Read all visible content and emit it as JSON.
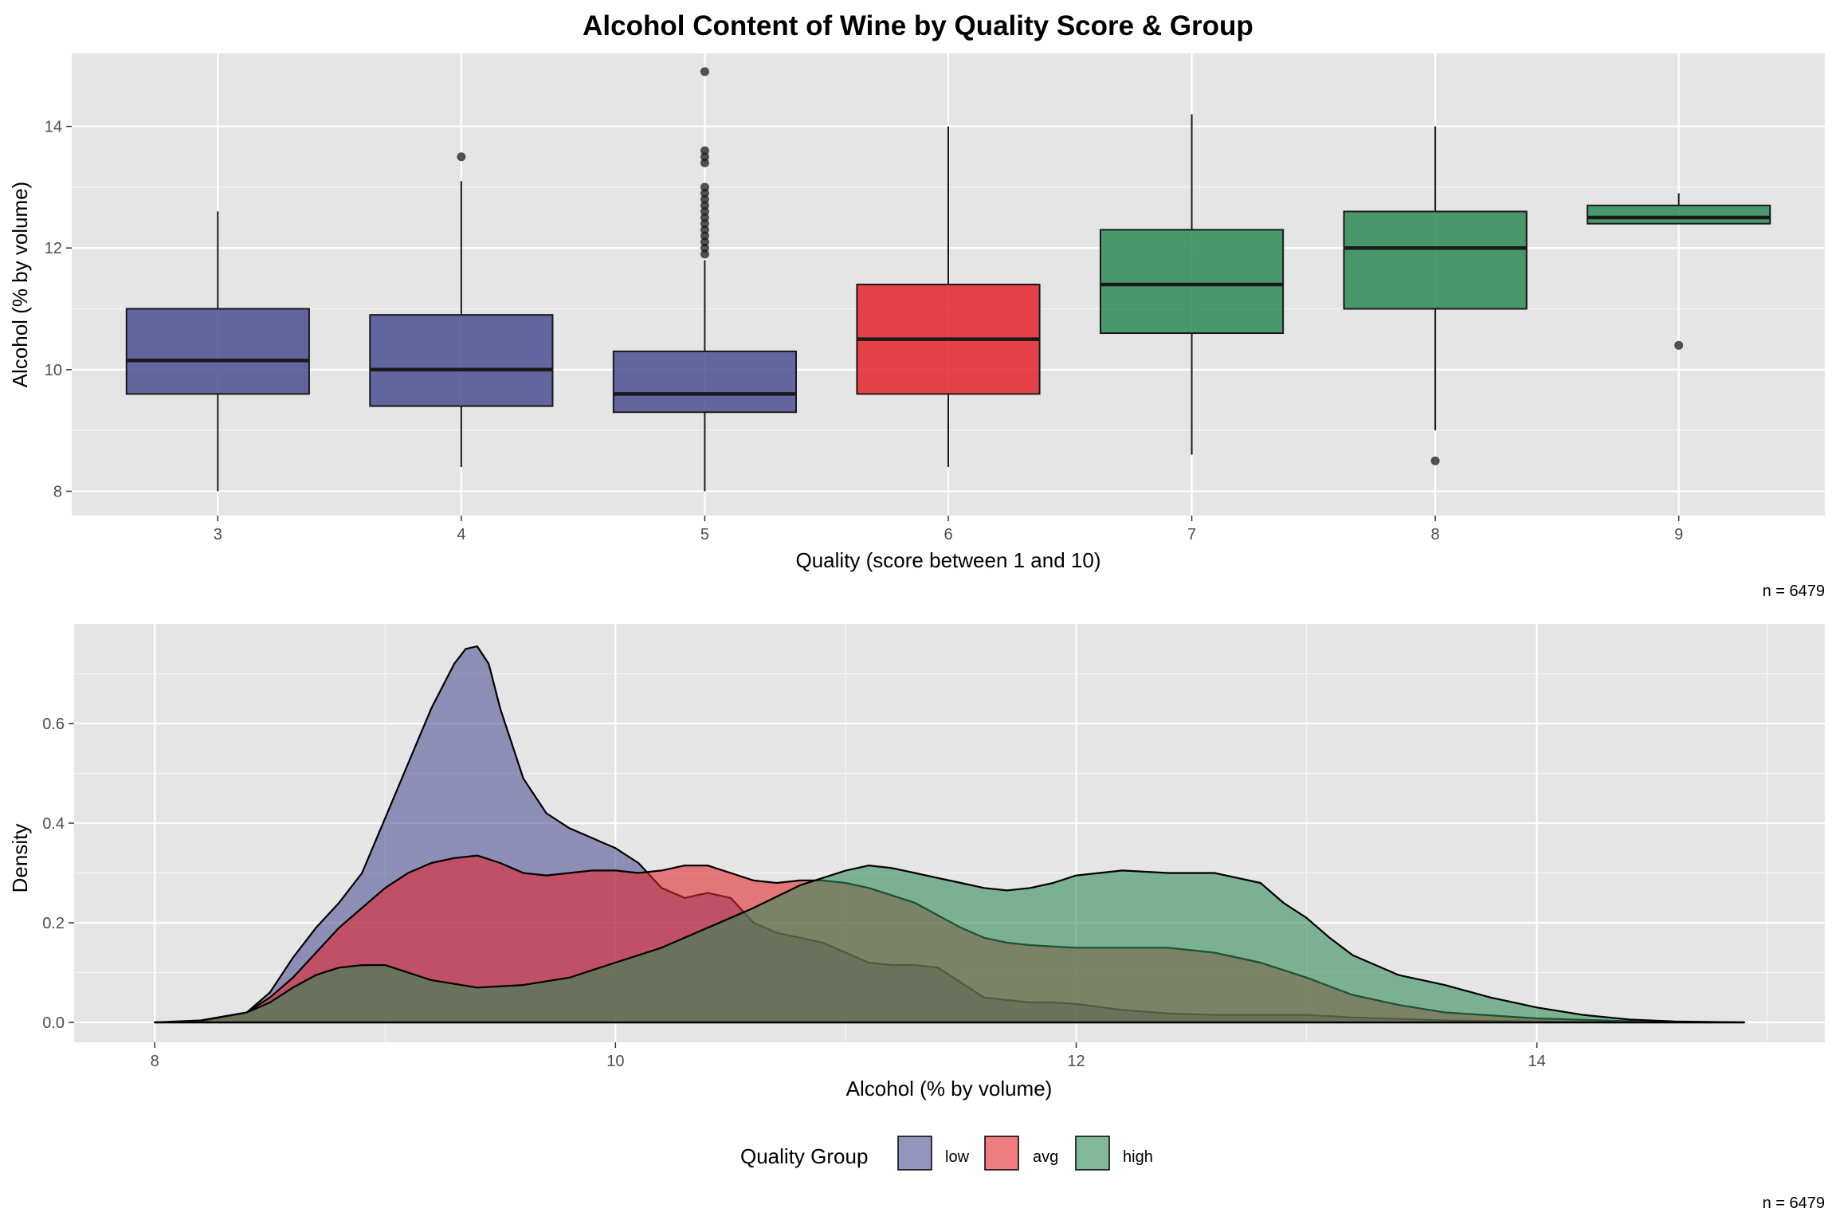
{
  "title": "Alcohol Content of Wine by Quality Score & Group",
  "colors": {
    "low": "#4b4f92",
    "avg": "#e3242b",
    "high": "#2e8b57",
    "panel": "#e5e5e5",
    "grid": "#ffffff"
  },
  "chart_data": [
    {
      "type": "boxplot",
      "xlabel": "Quality (score between 1 and 10)",
      "ylabel": "Alcohol (% by volume)",
      "caption": "n = 6479",
      "ylim": [
        7.6,
        15.2
      ],
      "yticks": [
        8,
        10,
        12,
        14
      ],
      "grid": true,
      "boxes": [
        {
          "quality": "3",
          "group": "low",
          "min": 8.0,
          "q1": 9.6,
          "median": 10.15,
          "q3": 11.0,
          "max": 12.6,
          "outliers": []
        },
        {
          "quality": "4",
          "group": "low",
          "min": 8.4,
          "q1": 9.4,
          "median": 10.0,
          "q3": 10.9,
          "max": 13.1,
          "outliers": [
            13.5
          ]
        },
        {
          "quality": "5",
          "group": "low",
          "min": 8.0,
          "q1": 9.3,
          "median": 9.6,
          "q3": 10.3,
          "max": 11.8,
          "outliers": [
            11.9,
            12.0,
            12.1,
            12.2,
            12.3,
            12.4,
            12.5,
            12.6,
            12.7,
            12.8,
            12.9,
            13.0,
            13.4,
            13.5,
            13.6,
            14.9
          ]
        },
        {
          "quality": "6",
          "group": "avg",
          "min": 8.4,
          "q1": 9.6,
          "median": 10.5,
          "q3": 11.4,
          "max": 14.0,
          "outliers": []
        },
        {
          "quality": "7",
          "group": "high",
          "min": 8.6,
          "q1": 10.6,
          "median": 11.4,
          "q3": 12.3,
          "max": 14.2,
          "outliers": []
        },
        {
          "quality": "8",
          "group": "high",
          "min": 9.0,
          "q1": 11.0,
          "median": 12.0,
          "q3": 12.6,
          "max": 14.0,
          "outliers": [
            8.5
          ]
        },
        {
          "quality": "9",
          "group": "high",
          "min": 12.4,
          "q1": 12.4,
          "median": 12.5,
          "q3": 12.7,
          "max": 12.9,
          "outliers": [
            10.4
          ]
        }
      ]
    },
    {
      "type": "area",
      "xlabel": "Alcohol (% by volume)",
      "ylabel": "Density",
      "caption": "n = 6479",
      "xlim": [
        7.65,
        15.25
      ],
      "ylim": [
        -0.04,
        0.8
      ],
      "xticks": [
        8,
        10,
        12,
        14
      ],
      "yticks": [
        0.0,
        0.2,
        0.4,
        0.6
      ],
      "grid": true,
      "legend": {
        "title": "Quality Group",
        "position": "bottom",
        "entries": [
          "low",
          "avg",
          "high"
        ]
      },
      "series": [
        {
          "name": "low",
          "x": [
            8.0,
            8.2,
            8.4,
            8.5,
            8.6,
            8.7,
            8.8,
            8.9,
            9.0,
            9.1,
            9.2,
            9.3,
            9.35,
            9.4,
            9.45,
            9.5,
            9.6,
            9.7,
            9.8,
            9.9,
            10.0,
            10.1,
            10.2,
            10.3,
            10.4,
            10.5,
            10.6,
            10.7,
            10.8,
            10.9,
            11.0,
            11.1,
            11.2,
            11.3,
            11.4,
            11.5,
            11.6,
            11.7,
            11.8,
            11.9,
            12.0,
            12.2,
            12.4,
            12.6,
            12.8,
            13.0,
            13.2,
            13.6,
            14.0,
            14.5,
            14.9
          ],
          "y": [
            0.0,
            0.002,
            0.02,
            0.06,
            0.13,
            0.19,
            0.24,
            0.3,
            0.41,
            0.52,
            0.63,
            0.72,
            0.75,
            0.755,
            0.72,
            0.63,
            0.49,
            0.42,
            0.39,
            0.37,
            0.35,
            0.32,
            0.27,
            0.25,
            0.26,
            0.25,
            0.2,
            0.18,
            0.17,
            0.16,
            0.14,
            0.12,
            0.115,
            0.115,
            0.11,
            0.08,
            0.05,
            0.045,
            0.04,
            0.04,
            0.037,
            0.025,
            0.018,
            0.015,
            0.015,
            0.015,
            0.01,
            0.004,
            0.002,
            0.0,
            0.0
          ]
        },
        {
          "name": "avg",
          "x": [
            8.0,
            8.2,
            8.4,
            8.5,
            8.6,
            8.7,
            8.8,
            8.9,
            9.0,
            9.1,
            9.2,
            9.3,
            9.4,
            9.5,
            9.6,
            9.7,
            9.8,
            9.9,
            10.0,
            10.1,
            10.2,
            10.3,
            10.4,
            10.5,
            10.6,
            10.7,
            10.8,
            10.9,
            11.0,
            11.1,
            11.2,
            11.3,
            11.4,
            11.5,
            11.6,
            11.7,
            11.8,
            12.0,
            12.2,
            12.4,
            12.6,
            12.8,
            13.0,
            13.2,
            13.4,
            13.6,
            14.0,
            14.5,
            14.9
          ],
          "y": [
            0.0,
            0.003,
            0.02,
            0.05,
            0.09,
            0.14,
            0.19,
            0.23,
            0.27,
            0.3,
            0.32,
            0.33,
            0.335,
            0.32,
            0.3,
            0.295,
            0.3,
            0.305,
            0.305,
            0.3,
            0.305,
            0.315,
            0.315,
            0.3,
            0.285,
            0.28,
            0.285,
            0.285,
            0.28,
            0.27,
            0.255,
            0.24,
            0.215,
            0.19,
            0.17,
            0.16,
            0.155,
            0.15,
            0.15,
            0.15,
            0.14,
            0.12,
            0.09,
            0.055,
            0.035,
            0.02,
            0.008,
            0.001,
            0.0
          ]
        },
        {
          "name": "high",
          "x": [
            8.0,
            8.2,
            8.4,
            8.5,
            8.6,
            8.7,
            8.8,
            8.9,
            9.0,
            9.1,
            9.2,
            9.4,
            9.6,
            9.8,
            10.0,
            10.2,
            10.4,
            10.6,
            10.8,
            11.0,
            11.1,
            11.2,
            11.3,
            11.4,
            11.5,
            11.6,
            11.7,
            11.8,
            11.9,
            12.0,
            12.2,
            12.4,
            12.6,
            12.8,
            12.9,
            13.0,
            13.1,
            13.2,
            13.4,
            13.6,
            13.8,
            14.0,
            14.2,
            14.4,
            14.6,
            14.9
          ],
          "y": [
            0.0,
            0.004,
            0.02,
            0.04,
            0.07,
            0.095,
            0.11,
            0.115,
            0.115,
            0.1,
            0.085,
            0.07,
            0.075,
            0.09,
            0.12,
            0.15,
            0.19,
            0.23,
            0.275,
            0.305,
            0.315,
            0.31,
            0.3,
            0.29,
            0.28,
            0.27,
            0.265,
            0.27,
            0.28,
            0.295,
            0.305,
            0.3,
            0.3,
            0.28,
            0.24,
            0.21,
            0.17,
            0.135,
            0.095,
            0.075,
            0.05,
            0.03,
            0.015,
            0.006,
            0.002,
            0.0
          ]
        }
      ]
    }
  ]
}
